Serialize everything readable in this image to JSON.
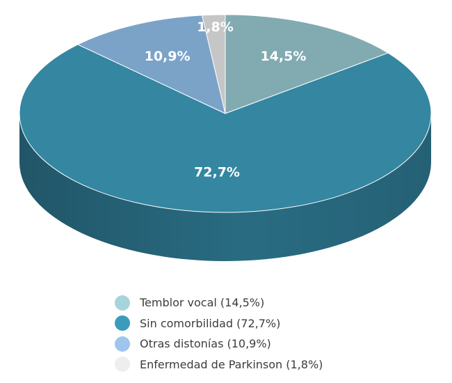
{
  "chart_data": {
    "type": "pie",
    "title": "",
    "slices": [
      {
        "label": "14,5%",
        "value": 14.5,
        "color": "#82AAB1",
        "side_color": "#5E8A92",
        "legend": "Temblor vocal (14,5%)",
        "legend_color": "#A6D4DB"
      },
      {
        "label": "72,7%",
        "value": 72.7,
        "color": "#3486A1",
        "side_color": "#2A6E85",
        "legend": "Sin comorbilidad (72,7%)",
        "legend_color": "#3A9BBB"
      },
      {
        "label": "10,9%",
        "value": 10.9,
        "color": "#7BA3C8",
        "side_color": "#5C84A8",
        "legend": "Otras distonías (10,9%)",
        "legend_color": "#9DC5EE"
      },
      {
        "label": "1,8%",
        "value": 1.8,
        "color": "#C6C6C6",
        "side_color": "#A5A5A5",
        "legend": "Enfermedad de Parkinson (1,8%)",
        "legend_color": "#EEEEEE"
      }
    ]
  }
}
